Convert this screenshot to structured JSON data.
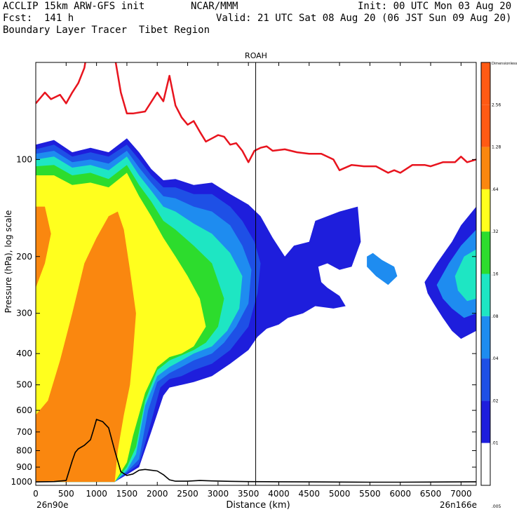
{
  "header": {
    "title_left": "ACCLIP 15km ARW-GFS init",
    "org": "NCAR/MMM",
    "init": "Init: 00 UTC Mon 03 Aug 20",
    "fcst": "Fcst:  141 h",
    "valid": "Valid: 21 UTC Sat 08 Aug 20 (06 JST Sun 09 Aug 20)",
    "subtitle": "Boundary Layer Tracer  Tibet Region"
  },
  "chart_data": {
    "type": "contour-cross-section",
    "title": "ROAH",
    "xlabel": "Distance (km)",
    "ylabel": "Pressure (hPa), log scale",
    "x_ticks": [
      0,
      500,
      1000,
      1500,
      2000,
      2500,
      3000,
      3500,
      4000,
      4500,
      5000,
      5500,
      6000,
      6500,
      7000
    ],
    "x_tick_labels": [
      "0",
      "500",
      "1000",
      "1500",
      "2000",
      "2500",
      "3000",
      "3500",
      "4000",
      "4500",
      "5000",
      "5500",
      "6000",
      "6500",
      "7000"
    ],
    "xlim": [
      0,
      7250
    ],
    "y_ticks": [
      100,
      200,
      300,
      400,
      500,
      600,
      700,
      800,
      900,
      1000
    ],
    "y_tick_labels": [
      "100",
      "200",
      "300",
      "400",
      "500",
      "600",
      "700",
      "800",
      "900",
      "1000"
    ],
    "ylim": [
      1025,
      50
    ],
    "left_endpoint": "26n90e",
    "right_endpoint": "26n166e",
    "marker_line_km": 3620,
    "colorbar": {
      "levels": [
        "Dimensionless",
        "2.56",
        "1.28",
        ".64",
        ".32",
        ".16",
        ".08",
        ".04",
        ".02",
        ".01",
        ".005"
      ],
      "colors": [
        "#ff5a14",
        "#ff5a14",
        "#fa870f",
        "#ffff1e",
        "#2ddc2d",
        "#1ee6c3",
        "#1e8cf0",
        "#1e50e6",
        "#1e1edc",
        "#ffffff"
      ]
    },
    "tropopause_red": {
      "km": [
        0,
        150,
        250,
        400,
        500,
        600,
        700,
        800,
        900,
        1000,
        1100,
        1200,
        1300,
        1400,
        1500,
        1600,
        1800,
        2000,
        2100,
        2200,
        2300,
        2400,
        2500,
        2600,
        2700,
        2800,
        2900,
        3000,
        3100,
        3200,
        3300,
        3400,
        3500,
        3600,
        3700,
        3800,
        3900,
        4100,
        4300,
        4500,
        4700,
        4900,
        5000,
        5200,
        5400,
        5600,
        5800,
        5900,
        6000,
        6200,
        6400,
        6500,
        6700,
        6900,
        7000,
        7100,
        7250
      ],
      "hpa": [
        67,
        62,
        65,
        63,
        67,
        62,
        58,
        52,
        40,
        32,
        30,
        32,
        48,
        62,
        72,
        72,
        71,
        62,
        66,
        55,
        68,
        74,
        78,
        76,
        82,
        88,
        86,
        84,
        85,
        90,
        89,
        94,
        102,
        94,
        92,
        91,
        94,
        93,
        95,
        96,
        96,
        100,
        108,
        104,
        105,
        105,
        110,
        108,
        110,
        104,
        104,
        105,
        102,
        102,
        98,
        102,
        100
      ]
    },
    "terrain_black": {
      "km": [
        0,
        300,
        500,
        600,
        650,
        700,
        800,
        900,
        950,
        1000,
        1100,
        1200,
        1300,
        1400,
        1500,
        1600,
        1700,
        1800,
        1900,
        2000,
        2100,
        2200,
        2300,
        2500,
        2700,
        2900,
        3200,
        3500,
        4000,
        4500,
        5000,
        5500,
        6000,
        6500,
        7000,
        7250
      ],
      "hpa": [
        1000,
        998,
        990,
        860,
        810,
        790,
        770,
        740,
        690,
        640,
        650,
        680,
        800,
        930,
        955,
        945,
        920,
        915,
        920,
        925,
        950,
        985,
        995,
        995,
        990,
        993,
        996,
        998,
        999,
        1000,
        1001,
        1002,
        1002,
        1001,
        1000,
        999
      ]
    },
    "tracer_regions": [
      {
        "level": ".01",
        "color": "#1e1edc",
        "km": [
          0,
          300,
          600,
          900,
          1200,
          1500,
          1700,
          1900,
          2100,
          2300,
          2600,
          2900,
          3200,
          3500,
          3700,
          3900,
          4100,
          4250,
          4500,
          4600,
          4800,
          5000,
          5300,
          5350,
          5200,
          5000,
          4800,
          4650,
          4700,
          4800,
          5000,
          5100,
          4900,
          4600,
          4400,
          4150,
          4000,
          3800,
          3650,
          3500,
          3200,
          2900,
          2600,
          2400,
          2200,
          2100,
          1900,
          1700,
          1500,
          1300,
          1100,
          900,
          700,
          500,
          300,
          0
        ],
        "hpa": [
          90,
          87,
          95,
          92,
          95,
          86,
          95,
          107,
          116,
          115,
          120,
          118,
          128,
          138,
          150,
          175,
          200,
          185,
          180,
          155,
          150,
          145,
          140,
          180,
          215,
          220,
          210,
          215,
          240,
          250,
          265,
          285,
          290,
          285,
          300,
          310,
          325,
          335,
          355,
          390,
          430,
          470,
          490,
          500,
          510,
          540,
          700,
          900,
          950,
          1000,
          1000,
          1000,
          1000,
          1000,
          1000,
          1000
        ]
      },
      {
        "level": ".02",
        "color": "#1e50e6",
        "km": [
          0,
          300,
          600,
          900,
          1200,
          1500,
          1700,
          1900,
          2100,
          2300,
          2600,
          2900,
          3200,
          3400,
          3600,
          3700,
          3650,
          3500,
          3200,
          2900,
          2600,
          2400,
          2200,
          2050,
          1900,
          1700,
          1500,
          1300,
          1100,
          900,
          700,
          500,
          300,
          0
        ],
        "hpa": [
          93,
          90,
          98,
          95,
          98,
          90,
          100,
          112,
          122,
          122,
          128,
          128,
          140,
          155,
          180,
          210,
          260,
          330,
          390,
          430,
          450,
          470,
          480,
          510,
          650,
          880,
          940,
          1000,
          1000,
          1000,
          1000,
          1000,
          1000,
          1000
        ]
      },
      {
        "level": ".04",
        "color": "#1e8cf0",
        "km": [
          0,
          300,
          600,
          900,
          1200,
          1500,
          1700,
          1900,
          2100,
          2300,
          2600,
          2900,
          3200,
          3400,
          3550,
          3500,
          3300,
          3100,
          2900,
          2600,
          2400,
          2200,
          2000,
          1850,
          1700,
          1500,
          1300,
          1100,
          900,
          700,
          500,
          300,
          0
        ],
        "hpa": [
          96,
          94,
          102,
          100,
          103,
          94,
          106,
          118,
          130,
          132,
          140,
          145,
          160,
          185,
          220,
          280,
          330,
          370,
          400,
          420,
          440,
          460,
          490,
          600,
          850,
          930,
          1000,
          1000,
          1000,
          1000,
          1000,
          1000,
          1000
        ]
      },
      {
        "level": ".08",
        "color": "#1ee6c3",
        "km": [
          0,
          300,
          600,
          900,
          1200,
          1500,
          1700,
          1900,
          2100,
          2300,
          2600,
          2900,
          3200,
          3400,
          3350,
          3150,
          2900,
          2600,
          2400,
          2200,
          2000,
          1800,
          1650,
          1500,
          1300,
          1100,
          900,
          700,
          500,
          300,
          0
        ],
        "hpa": [
          100,
          98,
          106,
          104,
          108,
          98,
          112,
          125,
          140,
          145,
          158,
          170,
          195,
          230,
          290,
          340,
          380,
          400,
          420,
          440,
          470,
          580,
          820,
          920,
          1000,
          1000,
          1000,
          1000,
          1000,
          1000,
          1000
        ]
      },
      {
        "level": ".16",
        "color": "#2ddc2d",
        "km": [
          0,
          300,
          600,
          900,
          1200,
          1500,
          1700,
          1900,
          2100,
          2300,
          2600,
          2900,
          3100,
          3000,
          2800,
          2600,
          2400,
          2200,
          2000,
          1800,
          1650,
          1500,
          1300,
          1100,
          900,
          700,
          500,
          300,
          0
        ],
        "hpa": [
          105,
          104,
          112,
          110,
          115,
          104,
          120,
          135,
          155,
          165,
          185,
          210,
          270,
          330,
          370,
          390,
          405,
          420,
          450,
          560,
          780,
          900,
          1000,
          1000,
          1000,
          1000,
          1000,
          1000,
          1000
        ]
      },
      {
        "level": ".32",
        "color": "#ffff1e",
        "km": [
          0,
          300,
          600,
          900,
          1200,
          1500,
          1700,
          1900,
          2100,
          2300,
          2500,
          2700,
          2800,
          2600,
          2400,
          2200,
          2000,
          1800,
          1600,
          1500,
          1300,
          1100,
          900,
          700,
          500,
          300,
          0
        ],
        "hpa": [
          112,
          112,
          120,
          118,
          122,
          110,
          130,
          150,
          175,
          200,
          230,
          270,
          330,
          380,
          400,
          410,
          440,
          530,
          720,
          870,
          1000,
          1000,
          1000,
          1000,
          1000,
          1000,
          1000
        ]
      },
      {
        "level": ".64",
        "color": "#fa870f",
        "km": [
          0,
          200,
          400,
          600,
          800,
          1000,
          1200,
          1350,
          1450,
          1550,
          1650,
          1600,
          1550,
          1450,
          1350,
          1300,
          1100,
          900,
          700,
          500,
          300,
          0,
          0,
          150,
          250,
          150,
          0
        ],
        "hpa": [
          620,
          560,
          420,
          300,
          210,
          175,
          150,
          145,
          165,
          220,
          300,
          400,
          500,
          620,
          800,
          1000,
          1000,
          1000,
          1000,
          1000,
          1000,
          1000,
          250,
          210,
          170,
          140,
          140
        ]
      },
      {
        "level": ".04",
        "color": "#1e8cf0",
        "km": [
          5450,
          5550,
          5700,
          5900,
          5950,
          5800,
          5600,
          5450
        ],
        "hpa": [
          200,
          195,
          205,
          215,
          230,
          245,
          230,
          215
        ]
      },
      {
        "level": ".01",
        "color": "#1e1edc",
        "km": [
          6400,
          6600,
          6850,
          7000,
          7250,
          7250,
          7000,
          6850,
          6700,
          6550,
          6450,
          6400
        ],
        "hpa": [
          240,
          210,
          180,
          160,
          140,
          340,
          360,
          340,
          310,
          280,
          260,
          240
        ]
      },
      {
        "level": ".04",
        "color": "#1e8cf0",
        "km": [
          6600,
          6800,
          7000,
          7250,
          7250,
          7050,
          6850,
          6700,
          6600
        ],
        "hpa": [
          245,
          210,
          185,
          165,
          300,
          310,
          290,
          270,
          245
        ]
      },
      {
        "level": ".08",
        "color": "#1ee6c3",
        "km": [
          6900,
          7050,
          7250,
          7250,
          7100,
          6950,
          6900
        ],
        "hpa": [
          230,
          200,
          190,
          270,
          275,
          255,
          230
        ]
      }
    ]
  }
}
